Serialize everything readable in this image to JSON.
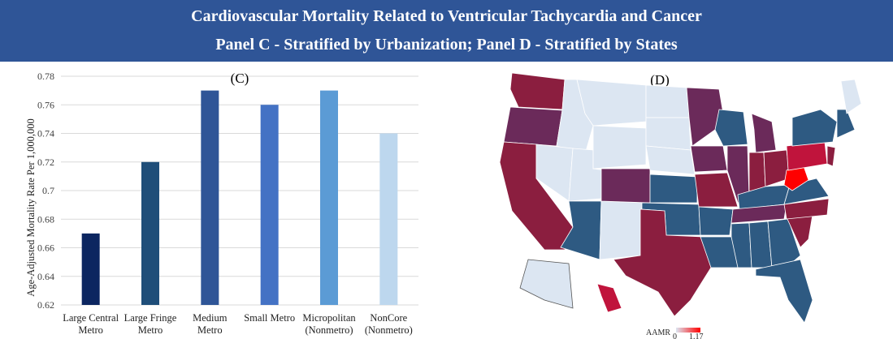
{
  "header": {
    "title_line1": "Cardiovascular Mortality Related to Ventricular Tachycardia and Cancer",
    "title_line2": "Panel C - Stratified by Urbanization; Panel D - Stratified by States"
  },
  "chart_data": [
    {
      "type": "bar",
      "panel_label": "(C)",
      "categories": [
        [
          "Large Central",
          "Metro"
        ],
        [
          "Large Fringe",
          "Metro"
        ],
        [
          "Medium",
          "Metro"
        ],
        [
          "Small Metro"
        ],
        [
          "Micropolitan",
          "(Nonmetro)"
        ],
        [
          "NonCore",
          "(Nonmetro)"
        ]
      ],
      "values": [
        0.67,
        0.72,
        0.77,
        0.76,
        0.77,
        0.74
      ],
      "colors": [
        "#0c2660",
        "#1f4e79",
        "#2f5597",
        "#4472c4",
        "#5b9bd5",
        "#bdd7ee"
      ],
      "ylabel": "Age-Adjusted Mortality Rate Per 1,000,000",
      "ylim": [
        0.62,
        0.78
      ],
      "yticks": [
        "0.62",
        "0.64",
        "0.66",
        "0.68",
        "0.7",
        "0.72",
        "0.74",
        "0.76",
        "0.78"
      ],
      "grid": true
    },
    {
      "type": "map",
      "panel_label": "(D)",
      "legend": {
        "title": "AAMR",
        "min": "0",
        "max": "1.17",
        "low_color": "#dce6f2",
        "high_color": "#ff0000"
      }
    }
  ]
}
